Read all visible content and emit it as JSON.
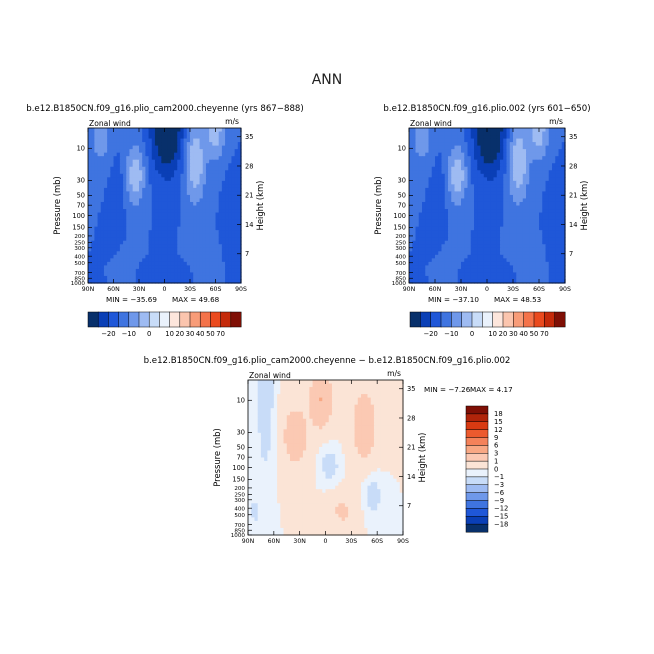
{
  "figure": {
    "title": "ANN"
  },
  "scale_labels": {
    "pressure_ticks": [
      "10",
      "30",
      "50",
      "70",
      "100",
      "150",
      "200",
      "250",
      "300",
      "400",
      "500",
      "700",
      "850",
      "1000"
    ],
    "height_ticks": [
      "35",
      "28",
      "21",
      "14",
      "7"
    ],
    "lat_ticks": [
      "90N",
      "60N",
      "30N",
      "0",
      "30S",
      "60S",
      "90S"
    ],
    "left_label": "Pressure (mb)",
    "right_label": "Height (km)",
    "var_label": "Zonal wind",
    "units": "m/s"
  },
  "colors": {
    "abs_levels": [
      "#08306b",
      "#0a3fb6",
      "#1f57d8",
      "#3f74e0",
      "#6f98ea",
      "#9ebbf2",
      "#c8dcf8",
      "#eaf2fc",
      "#fde6dc",
      "#fbc5ae",
      "#f89c78",
      "#f4734a",
      "#ea4a1e",
      "#c42a0a",
      "#7f0f05"
    ],
    "diff_levels": [
      "#08306b",
      "#0a3fb6",
      "#1f57d8",
      "#3f74e0",
      "#6f98ea",
      "#9ebbf2",
      "#c8dcf8",
      "#eaf2fc",
      "#fbe4d6",
      "#fbc9b3",
      "#f8a884",
      "#f4825a",
      "#ec5a2e",
      "#d83a12",
      "#b0240a",
      "#7f0f05"
    ]
  },
  "colorbars": {
    "abs_labels": [
      "−20",
      "−10",
      "0",
      "10",
      "20",
      "30",
      "40",
      "50",
      "70"
    ],
    "diff_labels": [
      "18",
      "15",
      "12",
      "9",
      "6",
      "3",
      "1",
      "0",
      "−1",
      "−3",
      "−6",
      "−9",
      "−12",
      "−15",
      "−18"
    ]
  },
  "chart_data": [
    {
      "type": "heatmap",
      "title": "b.e12.B1850CN.f09_g16.plio_cam2000.cheyenne (yrs 867−888)",
      "variable": "Zonal wind",
      "units": "m/s",
      "xlabel": "",
      "ylabel": "Pressure (mb)",
      "y2label": "Height (km)",
      "x_range": [
        "90N",
        "90S"
      ],
      "y_range_mb": [
        1000,
        5
      ],
      "min_label": "MIN = −35.69",
      "max_label": "MAX =  49.68",
      "min": -35.69,
      "max": 49.68,
      "contour_levels": [
        -20,
        -10,
        0,
        10,
        20,
        30,
        40,
        50,
        70
      ]
    },
    {
      "type": "heatmap",
      "title": "b.e12.B1850CN.f09_g16.plio.002 (yrs 601−650)",
      "variable": "Zonal wind",
      "units": "m/s",
      "xlabel": "",
      "ylabel": "Pressure (mb)",
      "y2label": "Height (km)",
      "x_range": [
        "90N",
        "90S"
      ],
      "y_range_mb": [
        1000,
        5
      ],
      "min_label": "MIN = −37.10",
      "max_label": "MAX =  48.53",
      "min": -37.1,
      "max": 48.53,
      "contour_levels": [
        -20,
        -10,
        0,
        10,
        20,
        30,
        40,
        50,
        70
      ]
    },
    {
      "type": "heatmap",
      "title": "b.e12.B1850CN.f09_g16.plio_cam2000.cheyenne − b.e12.B1850CN.f09_g16.plio.002",
      "variable": "Zonal wind",
      "units": "m/s",
      "xlabel": "",
      "ylabel": "Pressure (mb)",
      "y2label": "Height (km)",
      "x_range": [
        "90N",
        "90S"
      ],
      "y_range_mb": [
        1000,
        5
      ],
      "min_label": "MIN =  −7.26",
      "max_label": "MAX =   4.17",
      "min": -7.26,
      "max": 4.17,
      "contour_levels": [
        -18,
        -15,
        -12,
        -9,
        -6,
        -3,
        -1,
        0,
        1,
        3,
        6,
        9,
        12,
        15,
        18
      ]
    }
  ]
}
